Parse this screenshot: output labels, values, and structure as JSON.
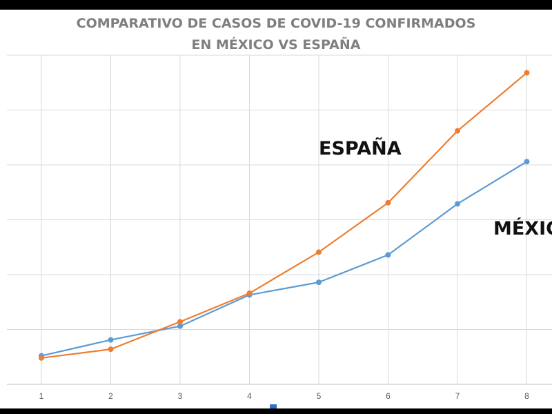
{
  "chart_data": {
    "type": "line",
    "title": [
      "COMPARATIVO DE CASOS DE COVID-19 CONFIRMADOS",
      "EN MÉXICO VS ESPAÑA"
    ],
    "xlabel": "",
    "ylabel": "",
    "x": [
      1,
      2,
      3,
      4,
      5,
      6,
      7,
      8
    ],
    "grid": true,
    "legend": "none",
    "series": [
      {
        "name": "ESPAÑA",
        "color": "#ed7d31",
        "values": [
          0.48,
          0.64,
          1.14,
          1.66,
          2.41,
          3.31,
          4.62,
          5.68
        ]
      },
      {
        "name": "MÉXICO",
        "color": "#5b9bd5",
        "values": [
          0.52,
          0.81,
          1.06,
          1.63,
          1.86,
          2.36,
          3.29,
          4.06
        ]
      }
    ],
    "annotations": [
      "ESPAÑA",
      "MÉXICO"
    ]
  }
}
